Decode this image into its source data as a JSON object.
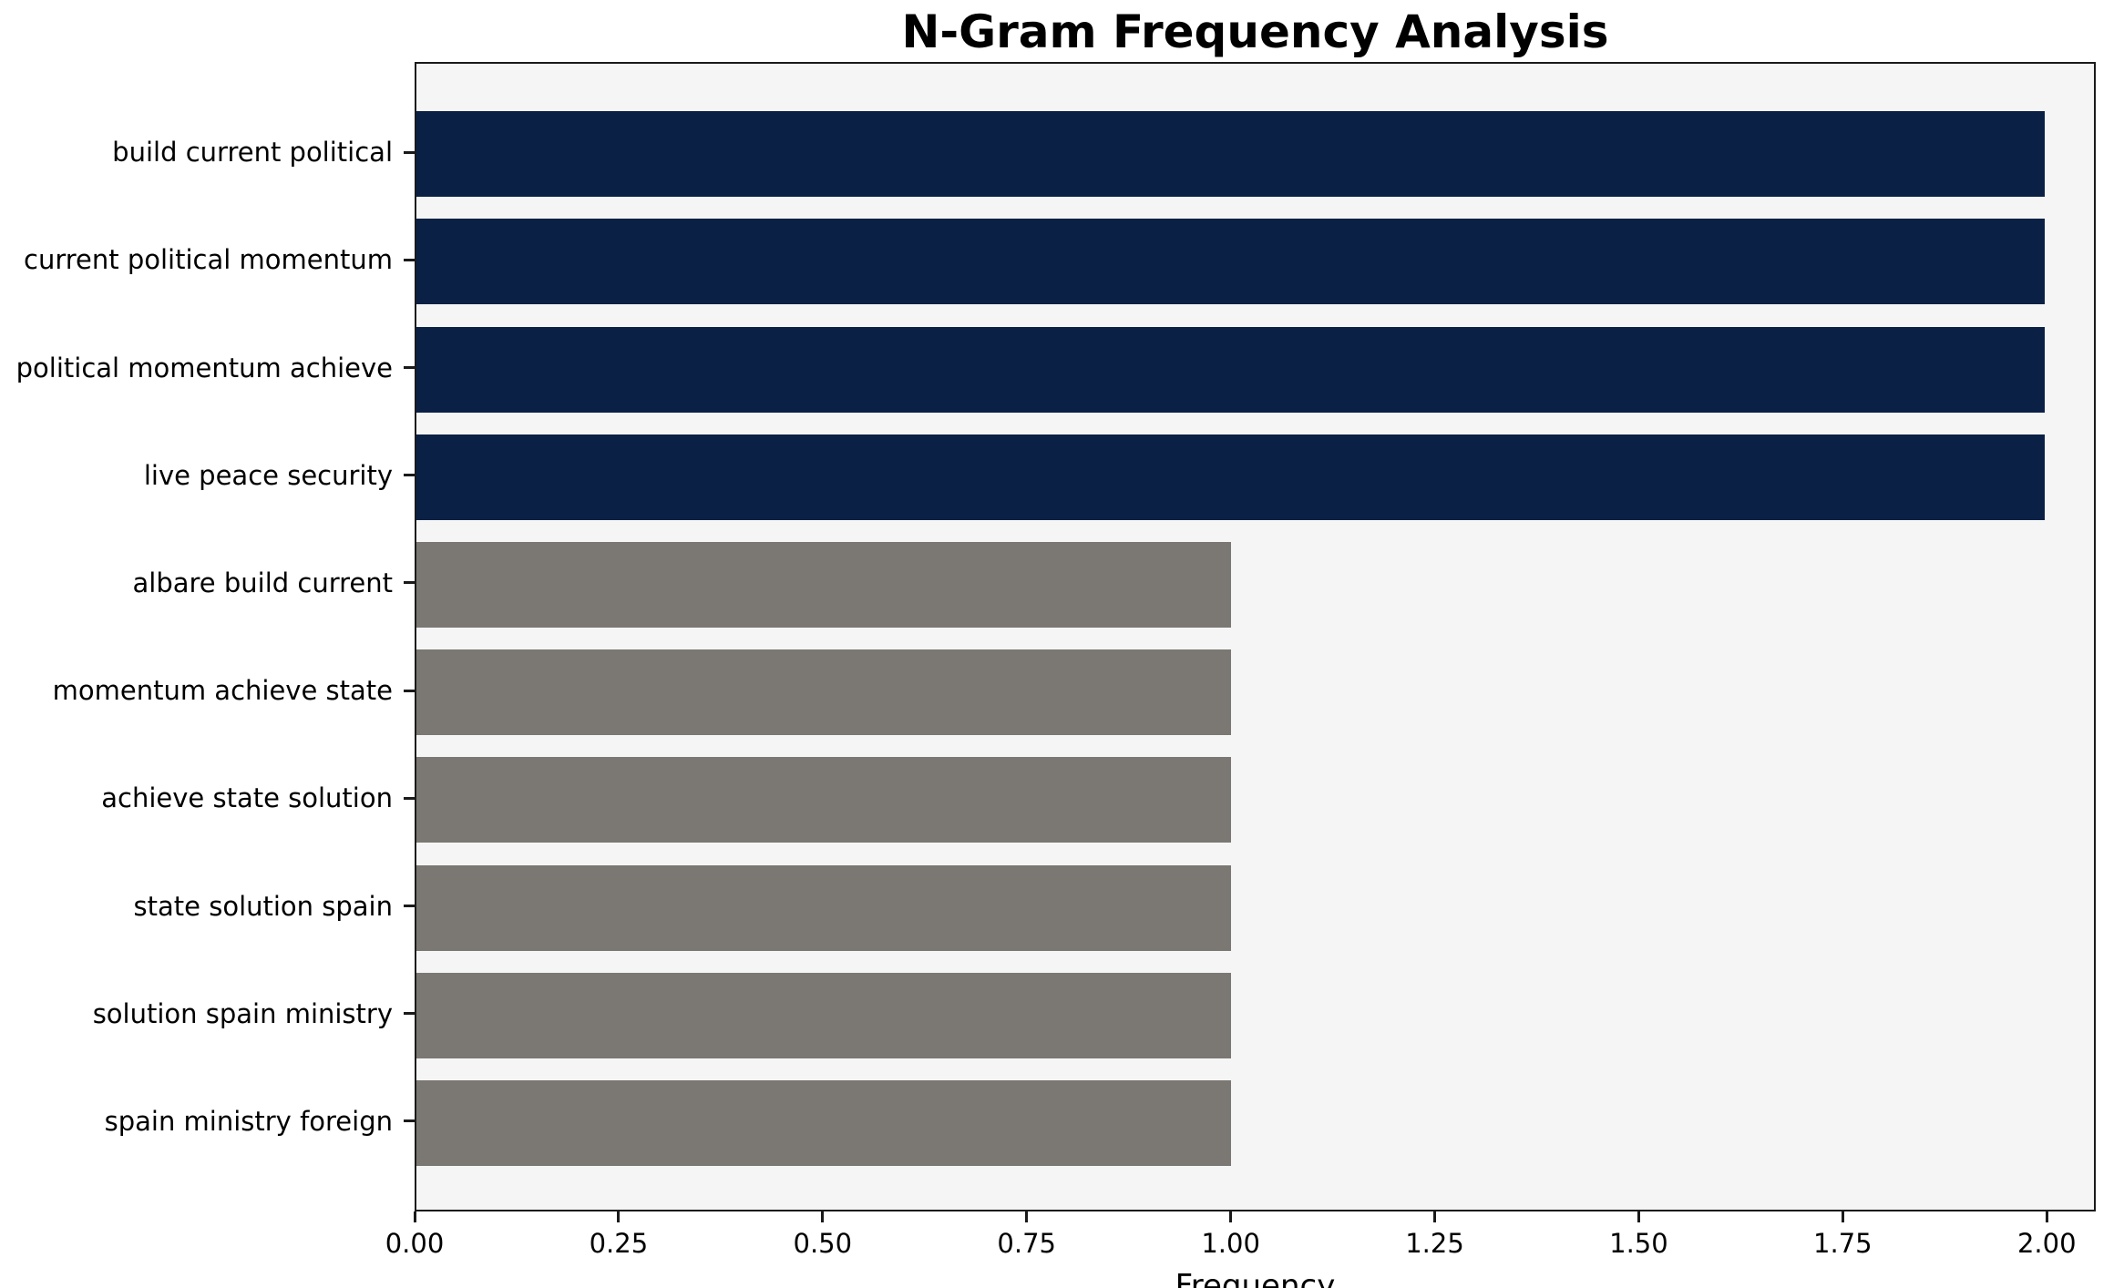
{
  "chart_data": {
    "type": "bar",
    "orientation": "horizontal",
    "title": "N-Gram Frequency Analysis",
    "xlabel": "Frequency",
    "ylabel": "",
    "grid": false,
    "legend": null,
    "xlim": [
      0,
      2.06
    ],
    "x_ticks": [
      0,
      0.25,
      0.5,
      0.75,
      1.0,
      1.25,
      1.5,
      1.75,
      2.0
    ],
    "x_tick_labels": [
      "0.00",
      "0.25",
      "0.50",
      "0.75",
      "1.00",
      "1.25",
      "1.50",
      "1.75",
      "2.00"
    ],
    "categories": [
      "build current political",
      "current political momentum",
      "political momentum achieve",
      "live peace security",
      "albare build current",
      "momentum achieve state",
      "achieve state solution",
      "state solution spain",
      "solution spain ministry",
      "spain ministry foreign"
    ],
    "values": [
      2,
      2,
      2,
      2,
      1,
      1,
      1,
      1,
      1,
      1
    ],
    "bar_colors": [
      "#0b2045",
      "#0b2045",
      "#0b2045",
      "#0b2045",
      "#7b7873",
      "#7b7873",
      "#7b7873",
      "#7b7873",
      "#7b7873",
      "#7b7873"
    ],
    "colors": {
      "highlight": "#0b2045",
      "default": "#7b7873",
      "plot_background": "#f5f5f5",
      "figure_background": "#ffffff",
      "axis": "#1a1a1a",
      "text": "#000000"
    }
  }
}
